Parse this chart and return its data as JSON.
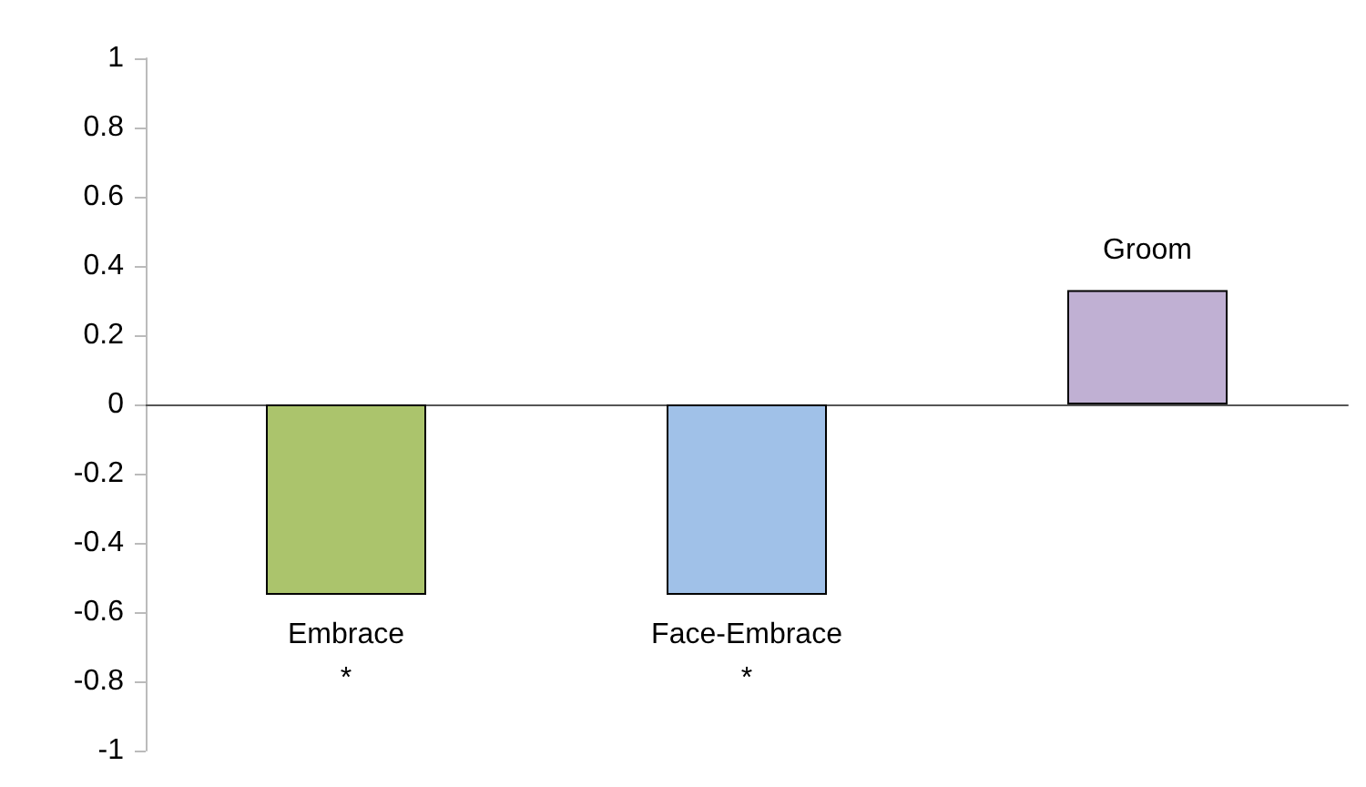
{
  "chart_data": {
    "type": "bar",
    "categories": [
      "Embrace",
      "Face-Embrace",
      "Groom"
    ],
    "values": [
      -0.55,
      -0.55,
      0.33
    ],
    "colors": [
      "#abc46c",
      "#a0c1e8",
      "#c0b0d3"
    ],
    "ylim": [
      -1,
      1
    ],
    "yticks": [
      -1,
      -0.8,
      -0.6,
      -0.4,
      -0.2,
      0,
      0.2,
      0.4,
      0.6,
      0.8,
      1
    ],
    "annotations": [
      "*",
      "*"
    ]
  }
}
